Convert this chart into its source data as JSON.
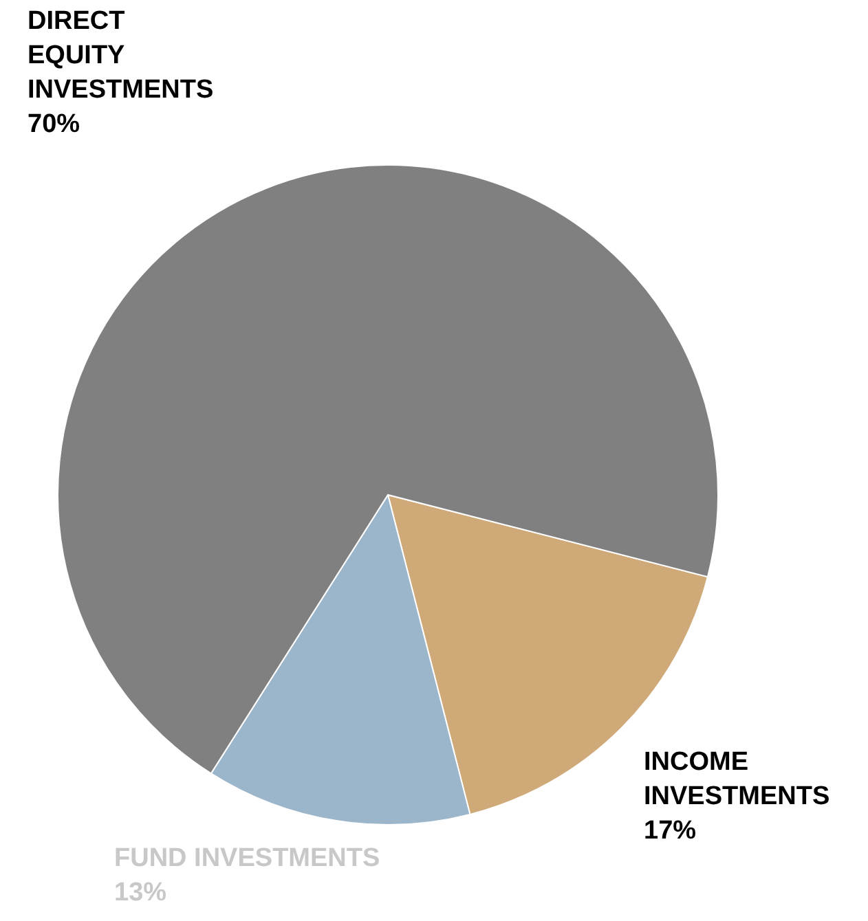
{
  "chart_data": {
    "type": "pie",
    "categories": [
      "INCOME INVESTMENTS",
      "FUND INVESTMENTS",
      "DIRECT EQUITY INVESTMENTS"
    ],
    "values": [
      17,
      13,
      70
    ],
    "colors": [
      "#cfaa78",
      "#9bb5cb",
      "#808080"
    ],
    "value_labels": [
      "17%",
      "13%",
      "70%"
    ]
  }
}
